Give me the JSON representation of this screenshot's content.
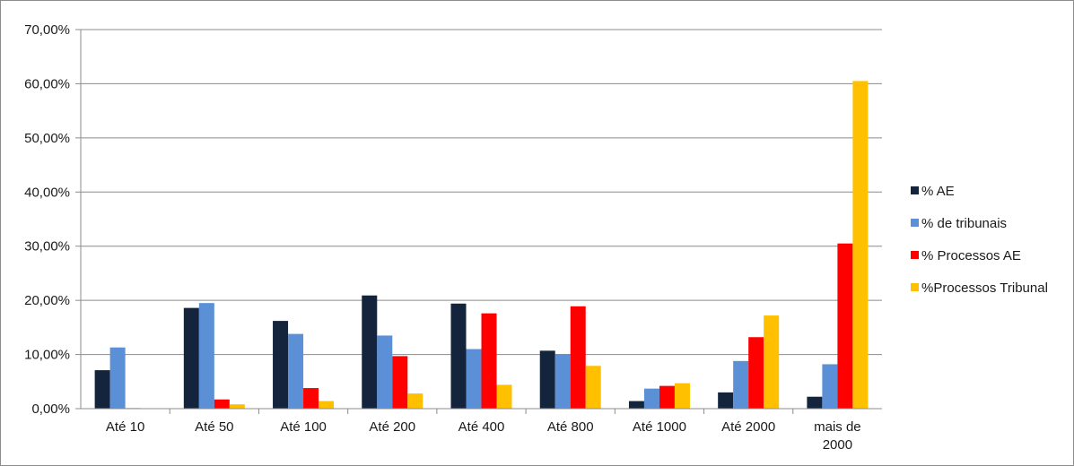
{
  "chart_data": {
    "type": "bar",
    "categories": [
      "Até 10",
      "Até 50",
      "Até 100",
      "Até 200",
      "Até 400",
      "Até 800",
      "Até 1000",
      "Até 2000",
      "mais de 2000"
    ],
    "series": [
      {
        "name": "% AE",
        "color": "#14243d",
        "values": [
          7.1,
          18.6,
          16.2,
          20.9,
          19.4,
          10.7,
          1.4,
          3.0,
          2.2
        ]
      },
      {
        "name": "% de tribunais",
        "color": "#5b8fd6",
        "values": [
          11.3,
          19.5,
          13.8,
          13.5,
          11.0,
          10.1,
          3.7,
          8.8,
          8.2
        ]
      },
      {
        "name": "% Processos AE",
        "color": "#ff0000",
        "values": [
          0.1,
          1.7,
          3.8,
          9.7,
          17.6,
          18.9,
          4.2,
          13.2,
          30.5
        ]
      },
      {
        "name": "%Processos Tribunal",
        "color": "#ffc000",
        "values": [
          0.0,
          0.8,
          1.4,
          2.8,
          4.4,
          7.9,
          4.7,
          17.2,
          60.5
        ]
      }
    ],
    "yticks": [
      "0,00%",
      "10,00%",
      "20,00%",
      "30,00%",
      "40,00%",
      "50,00%",
      "60,00%",
      "70,00%"
    ],
    "ylim": [
      0,
      70
    ],
    "grid": true,
    "legend": "right",
    "title": "",
    "xlabel": "",
    "ylabel": ""
  }
}
